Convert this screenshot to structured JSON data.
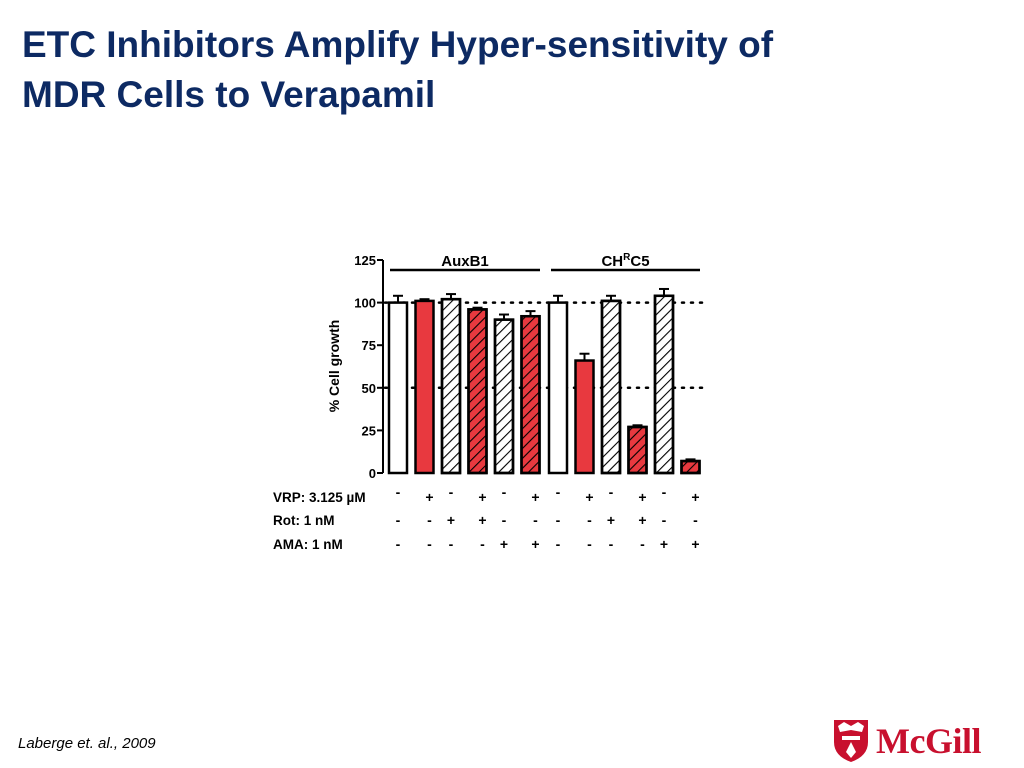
{
  "slide": {
    "title_line1": "ETC Inhibitors Amplify Hyper-sensitivity of",
    "title_line2": "MDR Cells to Verapamil",
    "citation": "Laberge et. al., 2009",
    "logo_text": "McGill",
    "logo_color": "#c8102e",
    "title_color": "#0d2a63"
  },
  "chart_data": {
    "type": "bar",
    "ylabel": "% Cell growth",
    "ylim": [
      0,
      125
    ],
    "yticks": [
      0,
      25,
      50,
      75,
      100,
      125
    ],
    "reference_lines": [
      100,
      50
    ],
    "groups": [
      {
        "label": "AuxB1",
        "superscript": "",
        "label_suffix": ""
      },
      {
        "label": "CH",
        "superscript": "R",
        "label_suffix": "C5"
      }
    ],
    "bars": [
      {
        "group": 0,
        "value": 100,
        "error": 4,
        "fill": "white",
        "hatched": false
      },
      {
        "group": 0,
        "value": 101,
        "error": 1,
        "fill": "red",
        "hatched": false
      },
      {
        "group": 0,
        "value": 102,
        "error": 3,
        "fill": "white",
        "hatched": true
      },
      {
        "group": 0,
        "value": 96,
        "error": 1,
        "fill": "red",
        "hatched": true
      },
      {
        "group": 0,
        "value": 90,
        "error": 3,
        "fill": "white",
        "hatched": true
      },
      {
        "group": 0,
        "value": 92,
        "error": 3,
        "fill": "red",
        "hatched": true
      },
      {
        "group": 1,
        "value": 100,
        "error": 4,
        "fill": "white",
        "hatched": false
      },
      {
        "group": 1,
        "value": 66,
        "error": 4,
        "fill": "red",
        "hatched": false
      },
      {
        "group": 1,
        "value": 101,
        "error": 3,
        "fill": "white",
        "hatched": true
      },
      {
        "group": 1,
        "value": 27,
        "error": 1,
        "fill": "red",
        "hatched": true
      },
      {
        "group": 1,
        "value": 104,
        "error": 4,
        "fill": "white",
        "hatched": true
      },
      {
        "group": 1,
        "value": 7,
        "error": 1,
        "fill": "red",
        "hatched": true
      }
    ],
    "treatments": [
      {
        "label": "VRP: 3.125 µM",
        "signs": [
          "-",
          "+",
          "-",
          "+",
          "-",
          "+",
          "-",
          "+",
          "-",
          "+",
          "-",
          "+"
        ]
      },
      {
        "label": "Rot: 1 nM",
        "signs": [
          "-",
          "-",
          "+",
          "+",
          "-",
          "-",
          "-",
          "-",
          "+",
          "+",
          "-",
          "-"
        ]
      },
      {
        "label": "AMA: 1 nM",
        "signs": [
          "-",
          "-",
          "-",
          "-",
          "+",
          "+",
          "-",
          "-",
          "-",
          "-",
          "+",
          "+"
        ]
      }
    ],
    "colors": {
      "red": "#e8393f",
      "white": "#ffffff",
      "stroke": "#000000"
    }
  }
}
